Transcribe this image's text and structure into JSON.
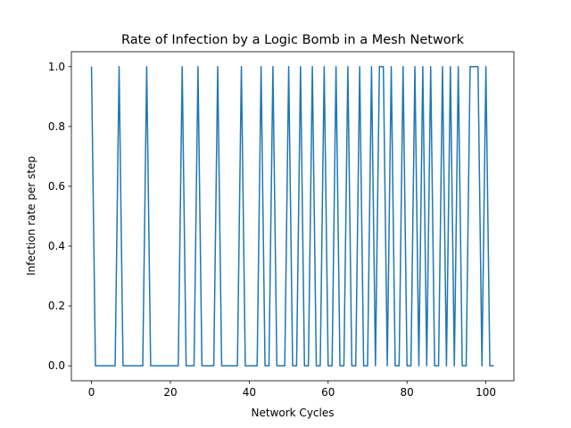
{
  "chart_data": {
    "type": "line",
    "title": "Rate of Infection by a Logic Bomb in a Mesh Network",
    "xlabel": "Network Cycles",
    "ylabel": "Infection rate per step",
    "xlim": [
      -5.1,
      107.1
    ],
    "ylim": [
      -0.05,
      1.05
    ],
    "xticks": [
      0,
      20,
      40,
      60,
      80,
      100
    ],
    "yticks": [
      0.0,
      0.2,
      0.4,
      0.6,
      0.8,
      1.0
    ],
    "ytick_labels": [
      "0.0",
      "0.2",
      "0.4",
      "0.6",
      "0.8",
      "1.0"
    ],
    "grid": false,
    "series": [
      {
        "color": "#1f77b4",
        "x": [
          0,
          1,
          2,
          3,
          4,
          5,
          6,
          7,
          8,
          9,
          10,
          11,
          12,
          13,
          14,
          15,
          16,
          17,
          18,
          19,
          20,
          21,
          22,
          23,
          24,
          25,
          26,
          27,
          28,
          29,
          30,
          31,
          32,
          33,
          34,
          35,
          36,
          37,
          38,
          39,
          40,
          41,
          42,
          43,
          44,
          45,
          46,
          47,
          48,
          49,
          50,
          51,
          52,
          53,
          54,
          55,
          56,
          57,
          58,
          59,
          60,
          61,
          62,
          63,
          64,
          65,
          66,
          67,
          68,
          69,
          70,
          71,
          72,
          73,
          74,
          75,
          76,
          77,
          78,
          79,
          80,
          81,
          82,
          83,
          84,
          85,
          86,
          87,
          88,
          89,
          90,
          91,
          92,
          93,
          94,
          95,
          96,
          97,
          98,
          99,
          100,
          101,
          102
        ],
        "y": [
          1,
          0,
          0,
          0,
          0,
          0,
          0,
          1,
          0,
          0,
          0,
          0,
          0,
          0,
          1,
          0,
          0,
          0,
          0,
          0,
          0,
          0,
          0,
          1,
          0,
          0,
          0,
          1,
          0,
          0,
          0,
          0,
          1,
          0,
          0,
          0,
          0,
          0,
          1,
          0,
          0,
          0,
          0,
          1,
          0,
          0,
          1,
          0,
          0,
          0,
          1,
          0,
          0,
          1,
          0,
          0,
          1,
          0,
          0,
          1,
          0,
          0,
          1,
          0,
          0,
          1,
          0,
          0,
          1,
          0,
          0,
          1,
          0,
          1,
          1,
          0,
          1,
          0,
          0,
          1,
          0,
          0,
          1,
          0,
          1,
          0,
          1,
          0,
          0,
          1,
          0,
          1,
          0,
          1,
          0,
          0,
          1,
          1,
          1,
          0,
          1,
          0,
          0
        ]
      }
    ]
  }
}
